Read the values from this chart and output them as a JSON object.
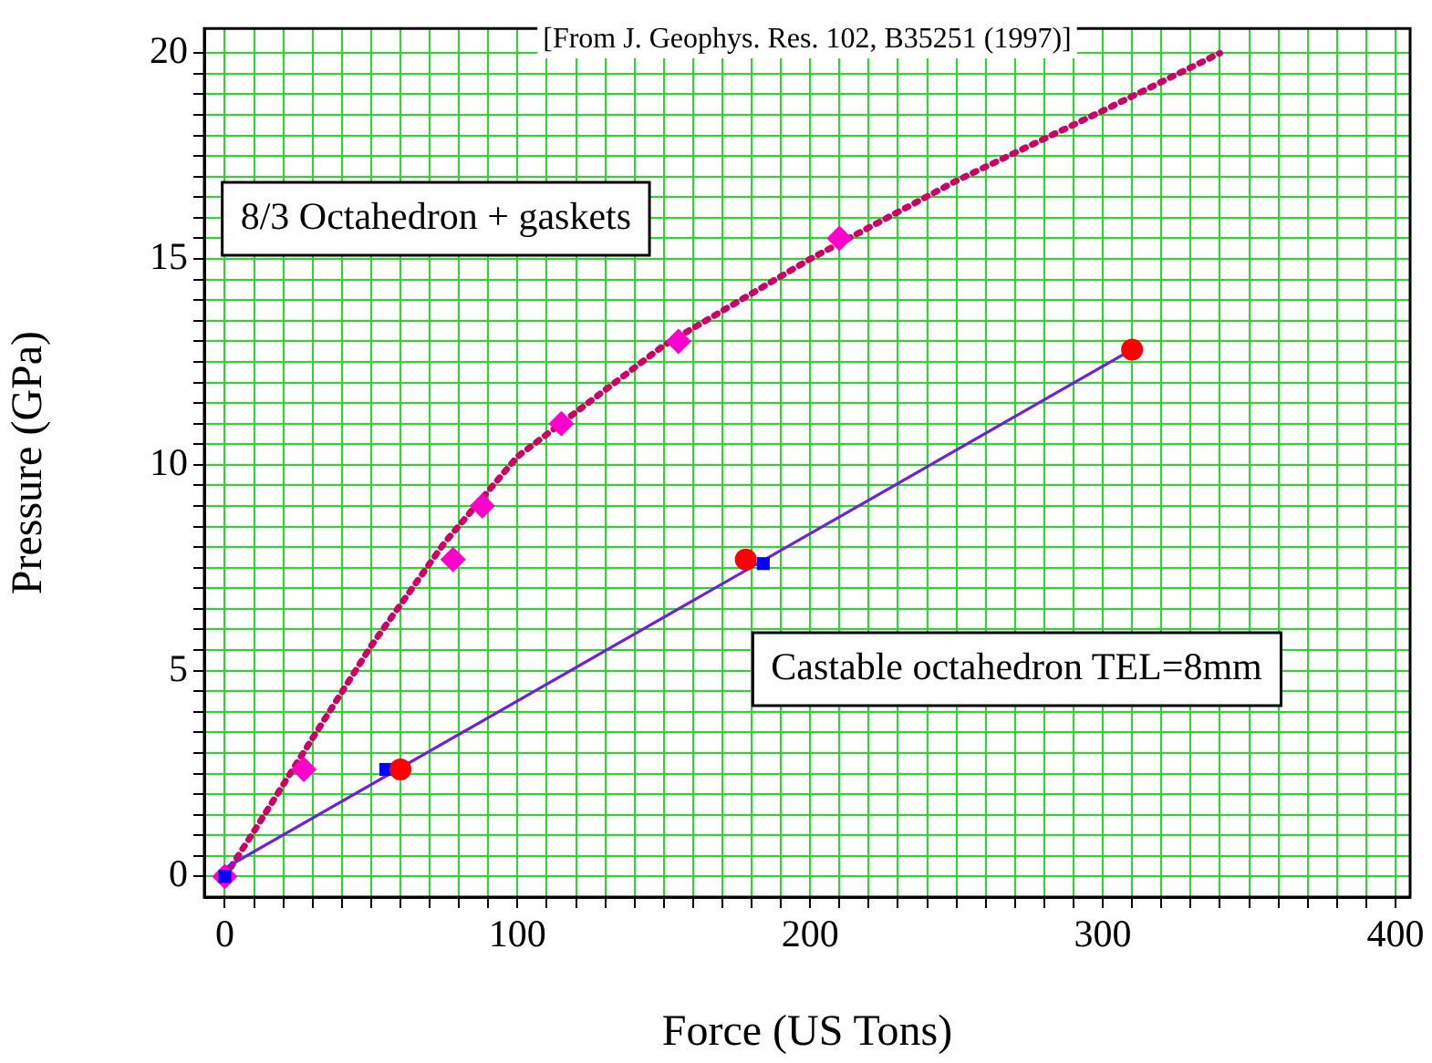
{
  "chart_data": {
    "type": "scatter",
    "xlabel": "Force (US Tons)",
    "ylabel": "Pressure (GPa)",
    "xlim": [
      -7,
      405
    ],
    "ylim": [
      -0.5,
      20.6
    ],
    "xticks": [
      0,
      {
        "value": 10,
        "label": null
      },
      {
        "value": 20,
        "label": null
      },
      {
        "value": 30,
        "label": null
      },
      {
        "value": 40,
        "label": null
      },
      {
        "value": 50,
        "label": null
      },
      {
        "value": 60,
        "label": null
      },
      {
        "value": 70,
        "label": null
      },
      {
        "value": 80,
        "label": null
      },
      {
        "value": 90,
        "label": null
      },
      100,
      {
        "value": 110,
        "label": null
      },
      {
        "value": 120,
        "label": null
      },
      {
        "value": 130,
        "label": null
      },
      {
        "value": 140,
        "label": null
      },
      {
        "value": 150,
        "label": null
      },
      {
        "value": 160,
        "label": null
      },
      {
        "value": 170,
        "label": null
      },
      {
        "value": 180,
        "label": null
      },
      {
        "value": 190,
        "label": null
      },
      200,
      {
        "value": 210,
        "label": null
      },
      {
        "value": 220,
        "label": null
      },
      {
        "value": 230,
        "label": null
      },
      {
        "value": 240,
        "label": null
      },
      {
        "value": 250,
        "label": null
      },
      {
        "value": 260,
        "label": null
      },
      {
        "value": 270,
        "label": null
      },
      {
        "value": 280,
        "label": null
      },
      {
        "value": 290,
        "label": null
      },
      300,
      {
        "value": 310,
        "label": null
      },
      {
        "value": 320,
        "label": null
      },
      {
        "value": 330,
        "label": null
      },
      {
        "value": 340,
        "label": null
      },
      {
        "value": 350,
        "label": null
      },
      {
        "value": 360,
        "label": null
      },
      {
        "value": 370,
        "label": null
      },
      {
        "value": 380,
        "label": null
      },
      {
        "value": 390,
        "label": null
      },
      400
    ],
    "yticks": [
      0,
      {
        "value": 0.5,
        "label": null
      },
      {
        "value": 1,
        "label": null
      },
      {
        "value": 1.5,
        "label": null
      },
      {
        "value": 2,
        "label": null
      },
      {
        "value": 2.5,
        "label": null
      },
      {
        "value": 3,
        "label": null
      },
      {
        "value": 3.5,
        "label": null
      },
      {
        "value": 4,
        "label": null
      },
      {
        "value": 4.5,
        "label": null
      },
      5,
      {
        "value": 5.5,
        "label": null
      },
      {
        "value": 6,
        "label": null
      },
      {
        "value": 6.5,
        "label": null
      },
      {
        "value": 7,
        "label": null
      },
      {
        "value": 7.5,
        "label": null
      },
      {
        "value": 8,
        "label": null
      },
      {
        "value": 8.5,
        "label": null
      },
      {
        "value": 9,
        "label": null
      },
      {
        "value": 9.5,
        "label": null
      },
      10,
      {
        "value": 10.5,
        "label": null
      },
      {
        "value": 11,
        "label": null
      },
      {
        "value": 11.5,
        "label": null
      },
      {
        "value": 12,
        "label": null
      },
      {
        "value": 12.5,
        "label": null
      },
      {
        "value": 13,
        "label": null
      },
      {
        "value": 13.5,
        "label": null
      },
      {
        "value": 14,
        "label": null
      },
      {
        "value": 14.5,
        "label": null
      },
      15,
      {
        "value": 15.5,
        "label": null
      },
      {
        "value": 16,
        "label": null
      },
      {
        "value": 16.5,
        "label": null
      },
      {
        "value": 17,
        "label": null
      },
      {
        "value": 17.5,
        "label": null
      },
      {
        "value": 18,
        "label": null
      },
      {
        "value": 18.5,
        "label": null
      },
      {
        "value": 19,
        "label": null
      },
      {
        "value": 19.5,
        "label": null
      },
      20
    ],
    "grid": true,
    "legend": false,
    "series": [
      {
        "type": "line",
        "line_style": "dotted",
        "marker": "none",
        "color": "#cc0066",
        "x": [
          0,
          10,
          25,
          50,
          75,
          100,
          150,
          200,
          250,
          300,
          340
        ],
        "values": [
          0,
          1.1,
          2.8,
          5.6,
          8.1,
          10.2,
          12.9,
          15.0,
          16.9,
          18.6,
          20.0
        ]
      },
      {
        "type": "line",
        "line_style": "solid",
        "marker": "none",
        "color": "#7020d8",
        "x": [
          0,
          310
        ],
        "values": [
          0.2,
          12.8
        ]
      },
      {
        "type": "scatter",
        "marker": "diamond",
        "color": "#ff00cc",
        "x": [
          0,
          27,
          78,
          88,
          115,
          155,
          210
        ],
        "values": [
          0,
          2.6,
          7.7,
          9.0,
          11.0,
          13.0,
          15.5
        ]
      },
      {
        "type": "scatter",
        "marker": "square",
        "color": "#0000ff",
        "x": [
          0,
          55,
          184
        ],
        "values": [
          0,
          2.6,
          7.6
        ]
      },
      {
        "type": "scatter",
        "marker": "circle",
        "color": "#ff0000",
        "x": [
          60,
          178,
          310
        ],
        "values": [
          2.6,
          7.7,
          12.8
        ]
      }
    ],
    "annotations": [
      "[From J. Geophys. Res. 102, B35251 (1997)]",
      "8/3 Octahedron + gaskets",
      "Castable octahedron TEL=8mm"
    ]
  }
}
